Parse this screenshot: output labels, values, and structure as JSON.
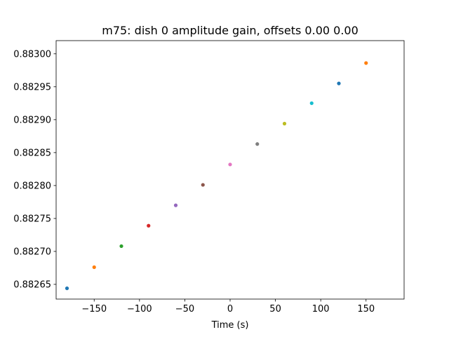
{
  "chart_data": {
    "type": "scatter",
    "title": "m75: dish 0 amplitude gain, offsets 0.00 0.00",
    "xlabel": "Time (s)",
    "ylabel": "",
    "xlim": [
      -192,
      192
    ],
    "ylim": [
      0.88262764,
      0.88302
    ],
    "grid": false,
    "x_ticks": [
      -150,
      -100,
      -50,
      0,
      50,
      100,
      150
    ],
    "x_tick_labels": [
      "−150",
      "−100",
      "−50",
      "0",
      "50",
      "100",
      "150"
    ],
    "y_ticks": [
      0.88265,
      0.8827,
      0.88275,
      0.8828,
      0.88285,
      0.8829,
      0.88295,
      0.883
    ],
    "y_tick_labels": [
      "0.88265",
      "0.88270",
      "0.88275",
      "0.88280",
      "0.88285",
      "0.88290",
      "0.88295",
      "0.88300"
    ],
    "points": [
      {
        "x": -180,
        "y": 0.882644,
        "color": "#1f77b4"
      },
      {
        "x": -150,
        "y": 0.882676,
        "color": "#ff7f0e"
      },
      {
        "x": -120,
        "y": 0.882708,
        "color": "#2ca02c"
      },
      {
        "x": -90,
        "y": 0.882739,
        "color": "#d62728"
      },
      {
        "x": -60,
        "y": 0.88277,
        "color": "#9467bd"
      },
      {
        "x": -30,
        "y": 0.882801,
        "color": "#8c564b"
      },
      {
        "x": 0,
        "y": 0.882832,
        "color": "#e377c2"
      },
      {
        "x": 30,
        "y": 0.882863,
        "color": "#7f7f7f"
      },
      {
        "x": 60,
        "y": 0.882894,
        "color": "#bcbd22"
      },
      {
        "x": 90,
        "y": 0.882925,
        "color": "#17becf"
      },
      {
        "x": 120,
        "y": 0.882955,
        "color": "#1f77b4"
      },
      {
        "x": 150,
        "y": 0.882986,
        "color": "#ff7f0e"
      }
    ]
  }
}
